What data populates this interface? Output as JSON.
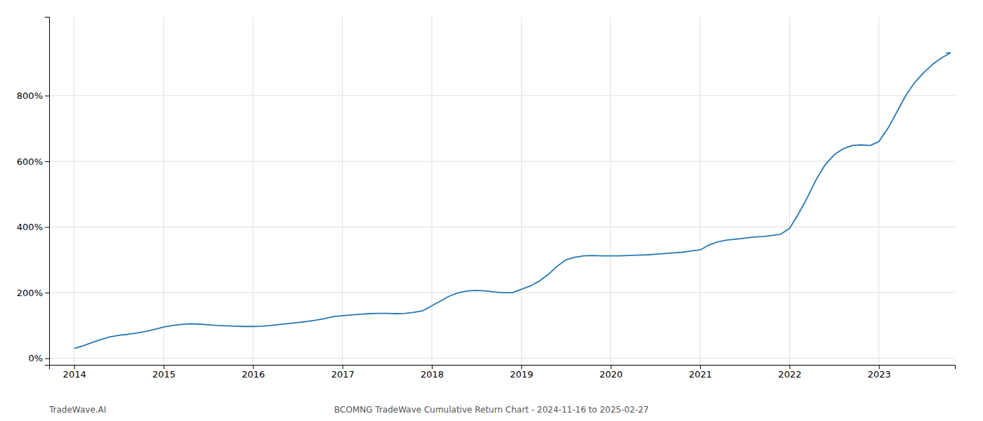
{
  "chart_data": {
    "type": "line",
    "title": "BCOMNG TradeWave Cumulative Return Chart - 2024-11-16 to 2025-02-27",
    "annotations": [
      "TradeWave.AI"
    ],
    "color": "#2878b5",
    "grid": true,
    "x": [
      2014.0,
      2014.1,
      2014.2,
      2014.3,
      2014.4,
      2014.5,
      2014.6,
      2014.7,
      2014.8,
      2014.9,
      2015.0,
      2015.1,
      2015.2,
      2015.3,
      2015.4,
      2015.5,
      2015.6,
      2015.7,
      2015.8,
      2015.9,
      2016.0,
      2016.1,
      2016.2,
      2016.3,
      2016.4,
      2016.5,
      2016.6,
      2016.7,
      2016.8,
      2016.9,
      2017.0,
      2017.1,
      2017.2,
      2017.3,
      2017.4,
      2017.5,
      2017.6,
      2017.7,
      2017.8,
      2017.9,
      2018.0,
      2018.1,
      2018.2,
      2018.3,
      2018.4,
      2018.5,
      2018.6,
      2018.7,
      2018.8,
      2018.9,
      2019.0,
      2019.1,
      2019.2,
      2019.3,
      2019.4,
      2019.5,
      2019.6,
      2019.7,
      2019.8,
      2019.9,
      2020.0,
      2020.1,
      2020.2,
      2020.3,
      2020.4,
      2020.5,
      2020.6,
      2020.7,
      2020.8,
      2020.9,
      2021.0,
      2021.1,
      2021.2,
      2021.3,
      2021.4,
      2021.5,
      2021.6,
      2021.7,
      2021.8,
      2021.9,
      2022.0,
      2022.1,
      2022.2,
      2022.3,
      2022.4,
      2022.5,
      2022.6,
      2022.7,
      2022.8,
      2022.9,
      2023.0,
      2023.1,
      2023.2,
      2023.3,
      2023.4,
      2023.5,
      2023.6,
      2023.7,
      2023.8,
      2023.75
    ],
    "values": [
      30,
      38,
      48,
      57,
      65,
      70,
      73,
      77,
      82,
      88,
      95,
      100,
      103,
      105,
      104,
      102,
      100,
      99,
      98,
      97,
      97,
      98,
      100,
      103,
      106,
      109,
      112,
      116,
      121,
      127,
      130,
      132,
      134,
      136,
      137,
      137,
      136,
      137,
      140,
      145,
      160,
      175,
      190,
      200,
      205,
      207,
      205,
      202,
      200,
      200,
      210,
      220,
      235,
      255,
      280,
      300,
      308,
      312,
      313,
      312,
      312,
      312,
      313,
      314,
      315,
      317,
      319,
      321,
      323,
      327,
      330,
      345,
      355,
      360,
      363,
      366,
      369,
      371,
      374,
      378,
      395,
      440,
      490,
      545,
      590,
      620,
      638,
      648,
      650,
      648,
      660,
      700,
      750,
      800,
      840,
      870,
      895,
      915,
      930,
      930
    ],
    "xlim": [
      2013.72,
      2023.85
    ],
    "xticks": [
      2014,
      2015,
      2016,
      2017,
      2018,
      2019,
      2020,
      2021,
      2022,
      2023
    ],
    "ylim": [
      -20,
      1040
    ],
    "yticks": [
      {
        "value": 0,
        "label": "0%"
      },
      {
        "value": 200,
        "label": "200%"
      },
      {
        "value": 400,
        "label": "400%"
      },
      {
        "value": 600,
        "label": "600%"
      },
      {
        "value": 800,
        "label": "800%"
      }
    ]
  }
}
